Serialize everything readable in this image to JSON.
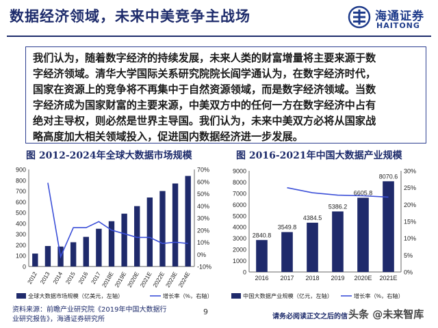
{
  "page": {
    "title": "数据经济领域，未来中美竞争主战场",
    "logo": {
      "cn": "海通证券",
      "en": "HAITONG"
    },
    "paragraph_lines": [
      "我们认为，随着数字经济的持续发展，未来人类的财富增量将主要来源于数",
      "字经济领域。清华大学国际关系研究院院长阎学通认为，在数字经济时代，",
      "国家在资源上的竞争将不再集中于自然资源领域，而是数字经济领域。当数",
      "字经济成为国家财富的主要来源，中美双方中的任何一方在数字经济中占有",
      "绝对主导权，则必然是世界主导国。我们认为，未来中美双方必将从国家战",
      "略高度加大相关领域投入，促进国内数据经济进一步发展。"
    ],
    "source_lines": [
      "资料来源：前瞻产业研究院《2019年中国大数据行",
      "业研究报告》，海通证券研究所"
    ],
    "page_number": "9",
    "disclaimer": "请务必阅读正文之后的信",
    "watermark": "头条 @未来智库"
  },
  "chart_data": [
    {
      "type": "bar",
      "title": "图 2012-2024年全球大数据市场规模",
      "categories": [
        "2012",
        "2013",
        "2014",
        "2015",
        "2016",
        "2017",
        "2018E",
        "2019E",
        "2020E",
        "2021E",
        "2022E",
        "2023E",
        "2024E"
      ],
      "series": [
        {
          "name": "全球大数据市场规模（亿美元，左轴）",
          "type": "bar",
          "axis": "left",
          "color": "#1f2a6b",
          "values": [
            120,
            190,
            185,
            225,
            275,
            350,
            420,
            490,
            560,
            640,
            700,
            770,
            840
          ]
        },
        {
          "name": "增长率（%，右轴）",
          "type": "line",
          "axis": "right",
          "color": "#3b4fd8",
          "values": [
            null,
            59,
            -2,
            22,
            22,
            27,
            20,
            17,
            14,
            14,
            9,
            10,
            9
          ]
        }
      ],
      "ylim_left": [
        0,
        900
      ],
      "yticks_left": [
        "0",
        "100",
        "200",
        "300",
        "400",
        "500",
        "600",
        "700",
        "800",
        "900"
      ],
      "ylim_right": [
        -10,
        70
      ],
      "yticks_right": [
        "-10%",
        "0%",
        "10%",
        "20%",
        "30%",
        "40%",
        "50%",
        "60%",
        "70%"
      ],
      "legend_position": "bottom"
    },
    {
      "type": "bar",
      "title": "图 2016-2021年中国大数据产业规模",
      "categories": [
        "2016",
        "2017",
        "2018",
        "2019",
        "2020E",
        "2021E"
      ],
      "series": [
        {
          "name": "中国大数据产业规模（亿元，左轴）",
          "type": "bar",
          "axis": "left",
          "color": "#1f2a6b",
          "values": [
            2840.8,
            3549.8,
            4384.5,
            5386.2,
            6605.8,
            8070.6
          ],
          "labels": [
            "2840.8",
            "3549.8",
            "4384.5",
            "5386.2",
            "6605.8",
            "8070.6"
          ]
        },
        {
          "name": "增长率（%，右轴）",
          "type": "line",
          "axis": "right",
          "color": "#3b4fd8",
          "values": [
            null,
            25,
            23.5,
            22.8,
            22.6,
            22.2
          ]
        }
      ],
      "ylim_left": [
        0,
        9000
      ],
      "yticks_left": [
        "0",
        "1000",
        "2000",
        "3000",
        "4000",
        "5000",
        "6000",
        "7000",
        "8000",
        "9000"
      ],
      "ylim_right": [
        0,
        30
      ],
      "yticks_right": [
        "0%",
        "5%",
        "10%",
        "15%",
        "20%",
        "25%",
        "30%"
      ],
      "legend_position": "bottom"
    }
  ]
}
